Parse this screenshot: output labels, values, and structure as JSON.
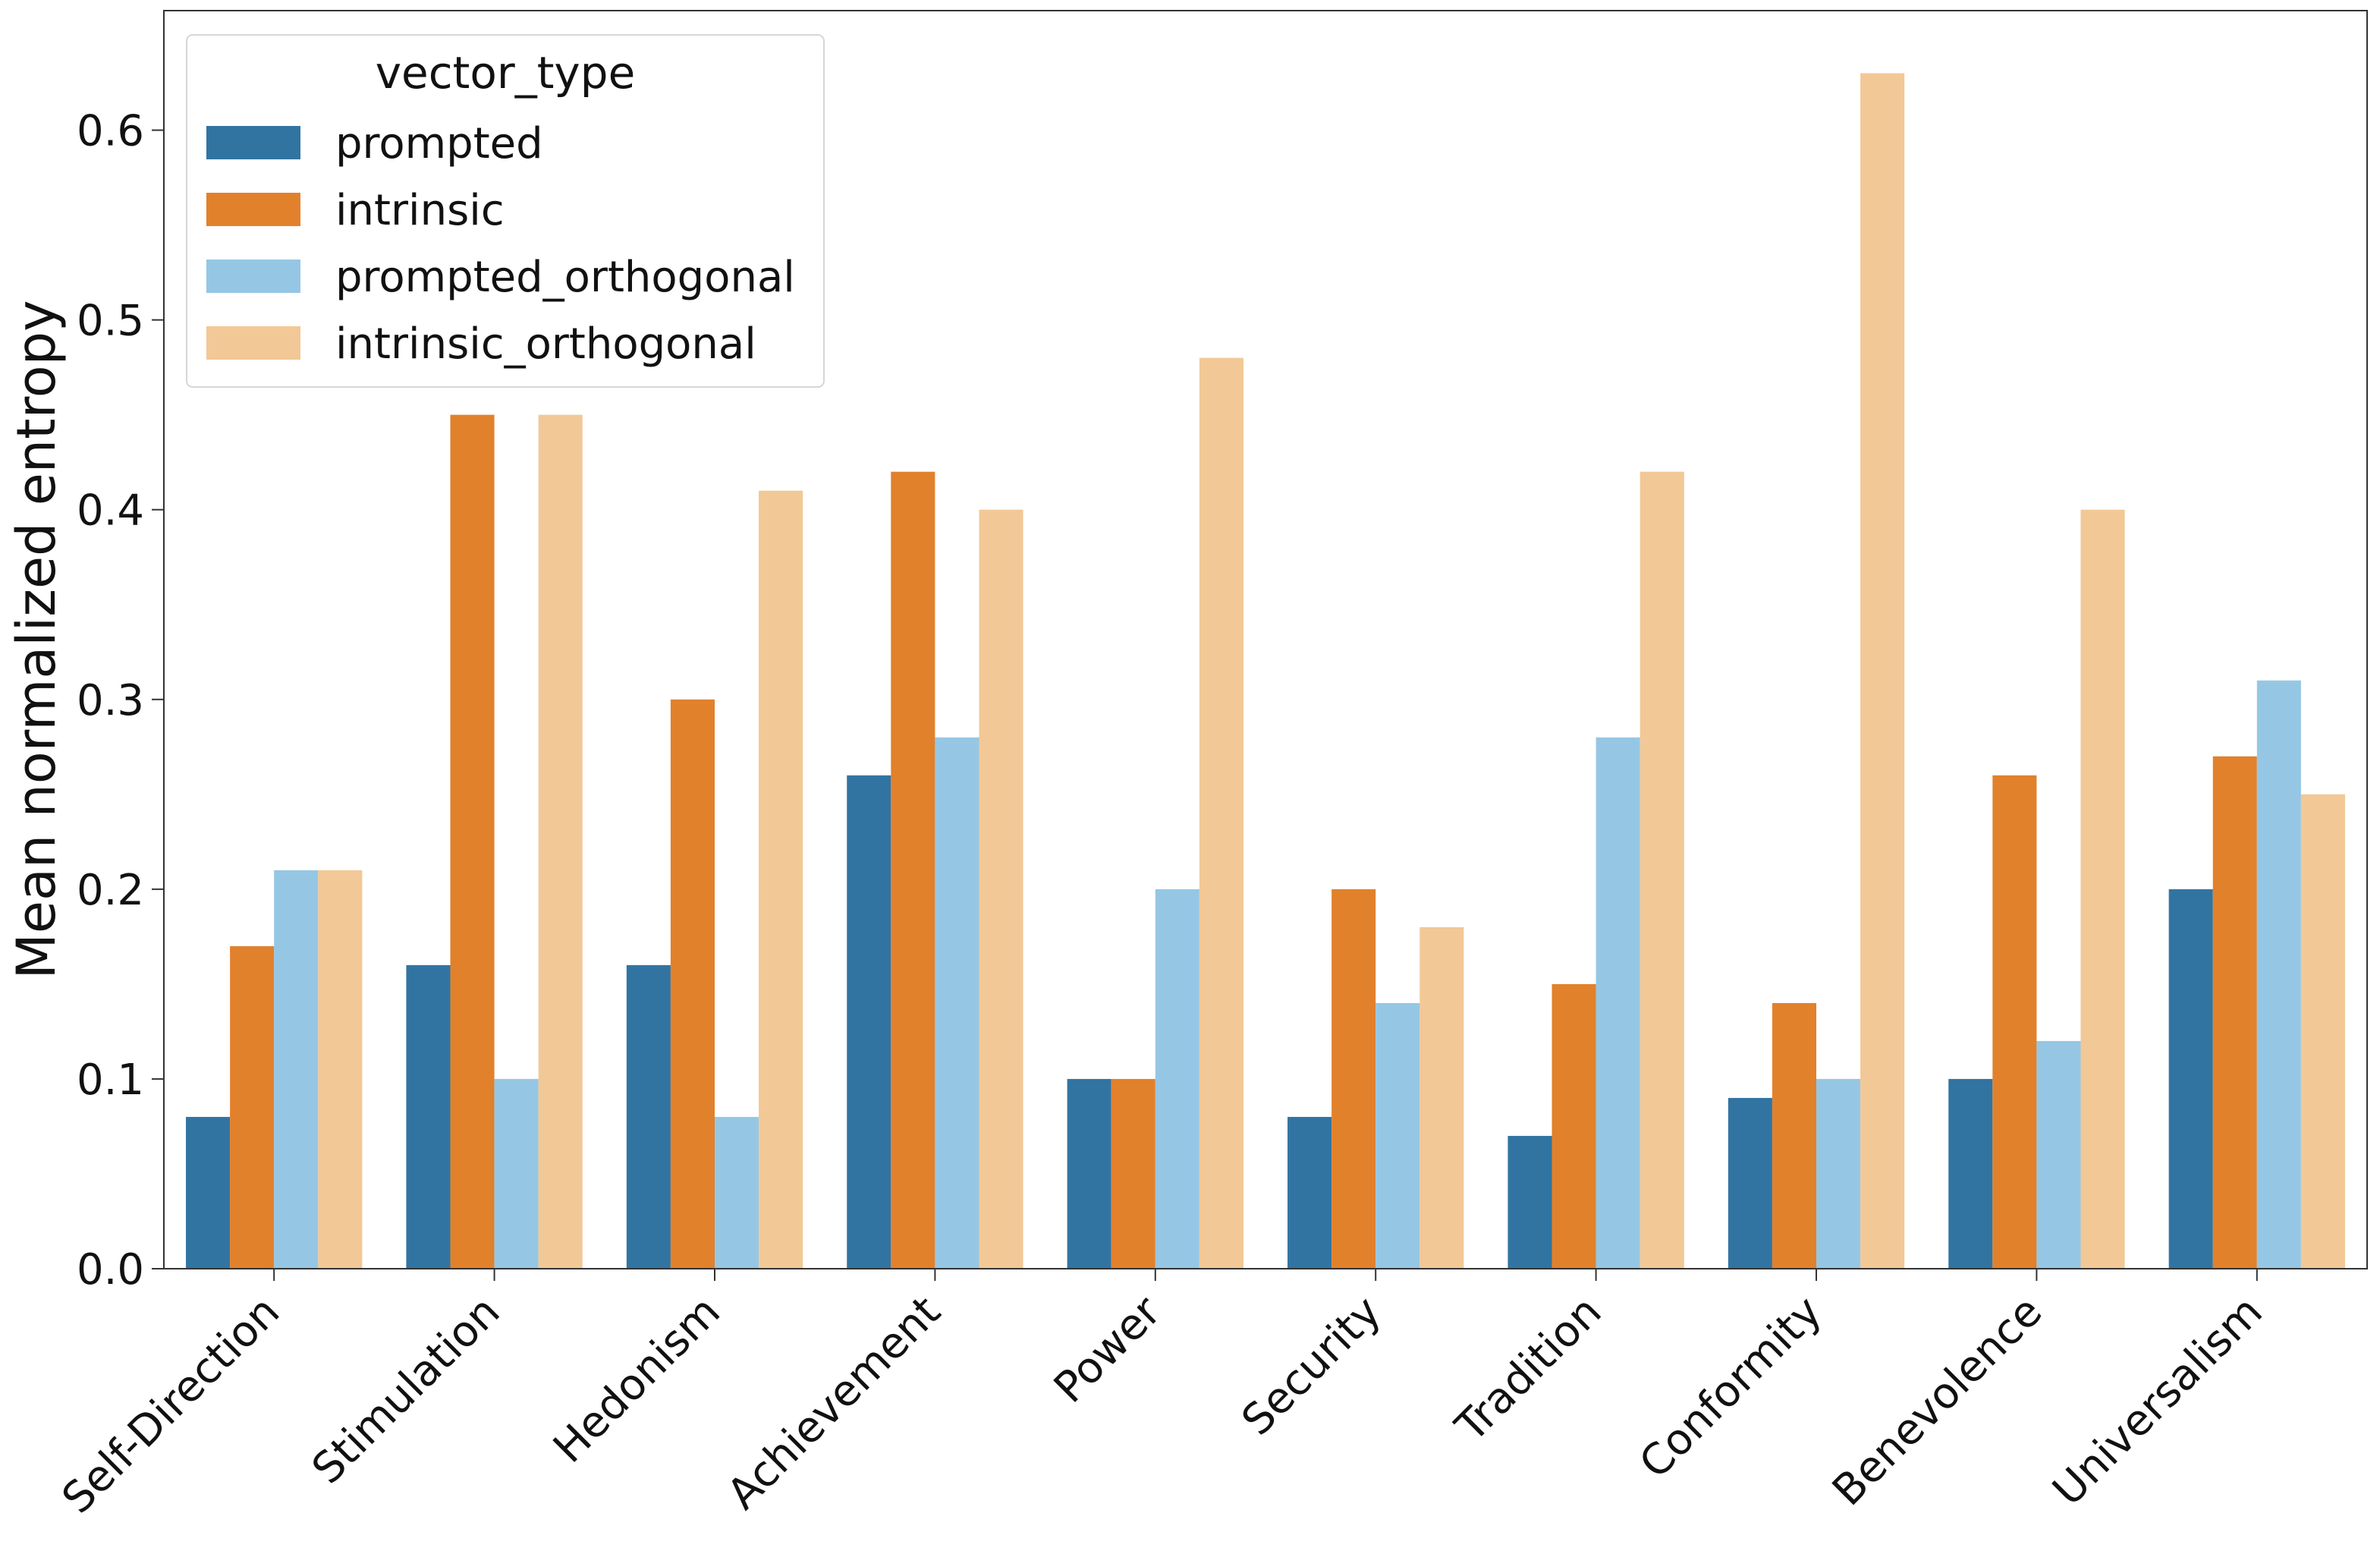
{
  "chart_data": {
    "type": "bar",
    "ylabel": "Mean normalized entropy",
    "xlabel": "",
    "ylim": [
      0,
      0.663
    ],
    "yticks": [
      "0.0",
      "0.1",
      "0.2",
      "0.3",
      "0.4",
      "0.5",
      "0.6"
    ],
    "categories": [
      "Self-Direction",
      "Stimulation",
      "Hedonism",
      "Achievement",
      "Power",
      "Security",
      "Tradition",
      "Conformity",
      "Benevolence",
      "Universalism"
    ],
    "legend": {
      "title": "vector_type",
      "placement": "top-left"
    },
    "series": [
      {
        "name": "prompted",
        "color": "#3274a1",
        "values": [
          0.08,
          0.16,
          0.16,
          0.26,
          0.1,
          0.08,
          0.07,
          0.09,
          0.1,
          0.2
        ]
      },
      {
        "name": "intrinsic",
        "color": "#e1812c",
        "values": [
          0.17,
          0.45,
          0.3,
          0.42,
          0.1,
          0.2,
          0.15,
          0.14,
          0.26,
          0.27
        ]
      },
      {
        "name": "prompted_orthogonal",
        "color": "#95c7e4",
        "values": [
          0.21,
          0.1,
          0.08,
          0.28,
          0.2,
          0.14,
          0.28,
          0.1,
          0.12,
          0.31
        ]
      },
      {
        "name": "intrinsic_orthogonal",
        "color": "#f2c896",
        "values": [
          0.21,
          0.45,
          0.41,
          0.4,
          0.48,
          0.18,
          0.42,
          0.63,
          0.4,
          0.25
        ]
      }
    ],
    "grid": false
  }
}
